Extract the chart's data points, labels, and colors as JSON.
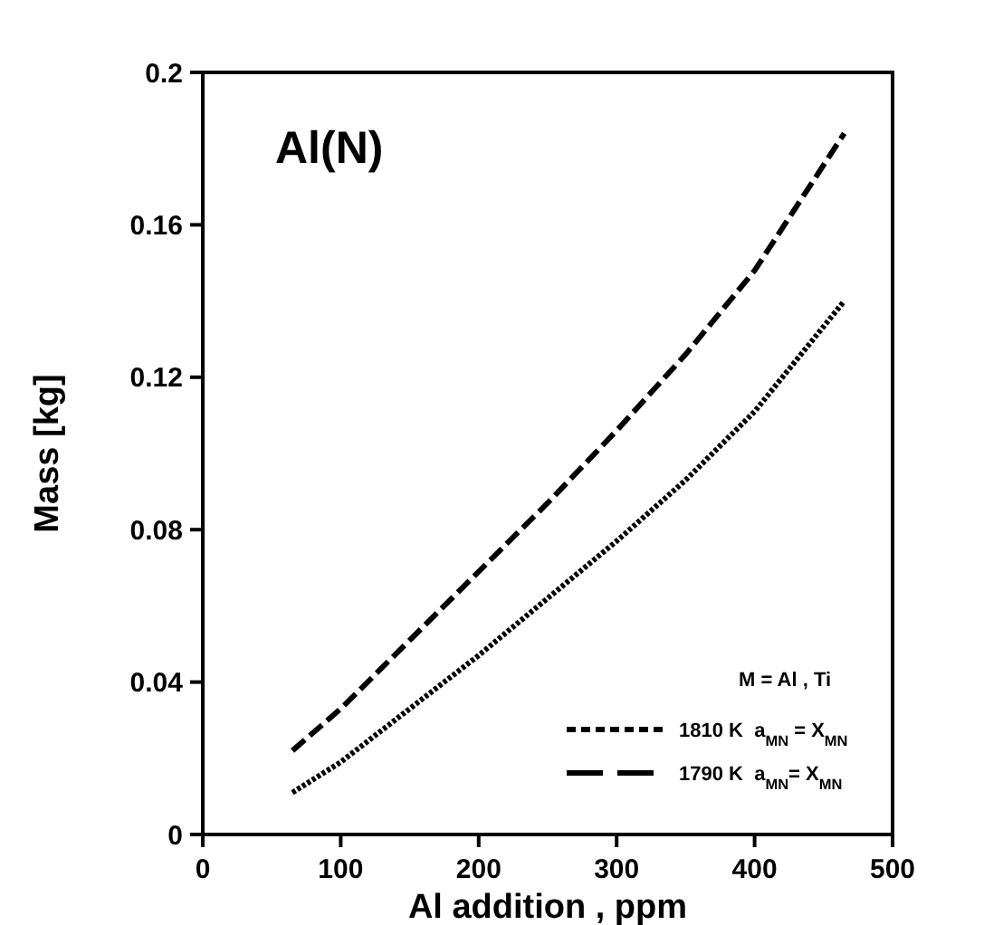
{
  "chart_data": {
    "type": "line",
    "xlabel": "Al addition , ppm",
    "ylabel": "Mass [kg]",
    "annotations": [
      "Al(N)"
    ],
    "legend_title": "M = Al , Ti",
    "legend": "bottom right",
    "xlim": [
      0,
      500
    ],
    "xticks": [
      0,
      100,
      200,
      300,
      400,
      500
    ],
    "ylim": [
      0,
      0.2
    ],
    "yticks": [
      0,
      0.04,
      0.08,
      0.12,
      0.16,
      0.2
    ],
    "grid": false,
    "series": [
      {
        "name": "1810 K  a$_{MN}$ = X$_{MN}$",
        "color": "#000000",
        "line_style": "dotted",
        "x": [
          65,
          100,
          150,
          200,
          250,
          300,
          350,
          400,
          465
        ],
        "values": [
          0.011,
          0.019,
          0.033,
          0.047,
          0.062,
          0.077,
          0.093,
          0.111,
          0.14
        ]
      },
      {
        "name": "1790 K  a$_{MN}$= X$_{MN}$",
        "color": "#000000",
        "line_style": "dashed",
        "x": [
          65,
          100,
          150,
          200,
          250,
          300,
          350,
          400,
          465
        ],
        "values": [
          0.022,
          0.033,
          0.051,
          0.069,
          0.087,
          0.106,
          0.126,
          0.148,
          0.184
        ]
      }
    ]
  }
}
